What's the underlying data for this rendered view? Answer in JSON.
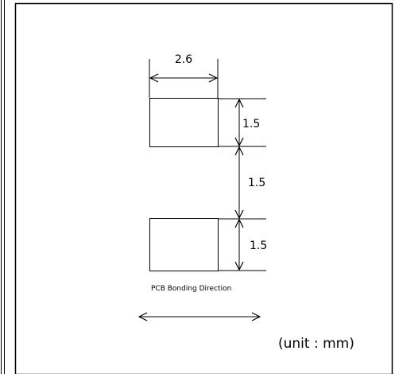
{
  "dimensions": {
    "pad_width": "2.6",
    "pad_height_top": "1.5",
    "pad_gap": "1.5",
    "pad_height_bottom": "1.5"
  },
  "caption": "PCB Bonding Direction",
  "unit_note": "(unit : mm)"
}
